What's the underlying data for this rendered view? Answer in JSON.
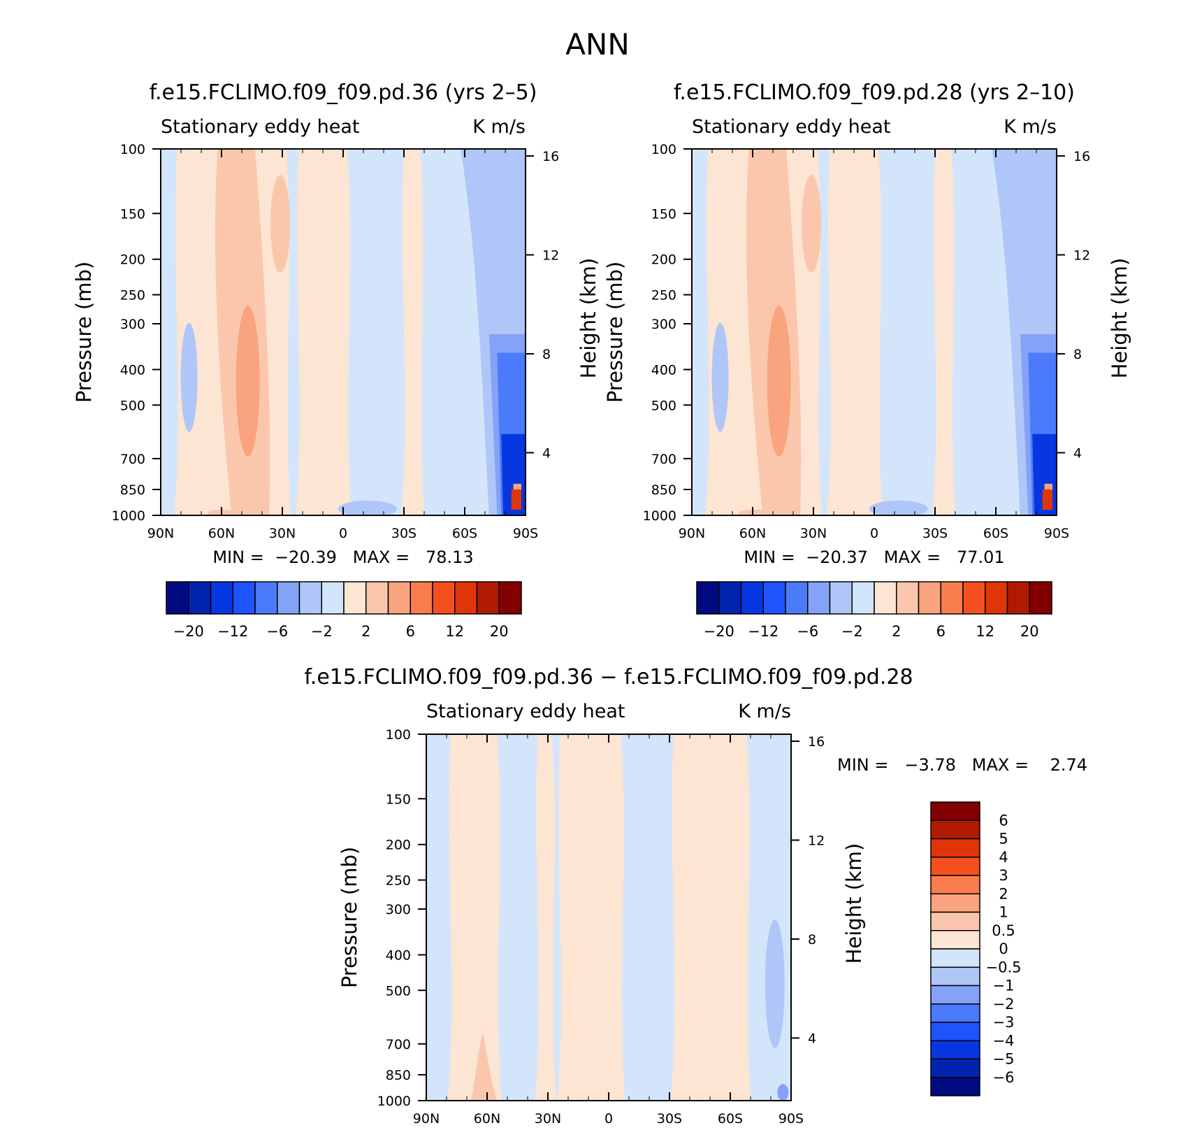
{
  "figure": {
    "title": "ANN"
  },
  "chart_data": [
    {
      "type": "heatmap",
      "id": "p1",
      "title": "f.e15.FCLIMO.f09_f09.pd.36 (yrs 2–5)",
      "field": "Stationary eddy heat",
      "units": "K m/s",
      "ylabel": "Pressure (mb)",
      "ylabel_right": "Height (km)",
      "x_ticks": [
        "90N",
        "60N",
        "30N",
        "0",
        "30S",
        "60S",
        "90S"
      ],
      "x_range": [
        90,
        -90
      ],
      "y_ticks": [
        100,
        150,
        200,
        250,
        300,
        400,
        500,
        700,
        850,
        1000
      ],
      "y_range": [
        100,
        1000
      ],
      "height_ticks": [
        16,
        12,
        8,
        4
      ],
      "min_label": "MIN =  −20.39   MAX =   78.13",
      "min": -20.39,
      "max": 78.13,
      "colorbar_labels": [
        "−20",
        "−12",
        "−6",
        "−2",
        "2",
        "6",
        "12",
        "20"
      ],
      "color_levels": [
        "#000b82",
        "#0024b0",
        "#0637e0",
        "#1f53fb",
        "#4b7bfb",
        "#85a3f6",
        "#b0c6f9",
        "#d3e5fa",
        "#fde5d3",
        "#fbc7ac",
        "#f9a47e",
        "#f97c4e",
        "#f4501f",
        "#e03607",
        "#b11a02",
        "#840000"
      ],
      "features": [
        {
          "name": "nh-midlat-positive-max",
          "lat": 45,
          "p_top": 300,
          "p_bottom": 750,
          "value": 6
        },
        {
          "name": "nh-subpolar-negative",
          "lat": 75,
          "p_top": 400,
          "p_bottom": 600,
          "value": -2
        },
        {
          "name": "sh-polar-negative-core",
          "lat": -80,
          "p_top": 300,
          "p_bottom": 950,
          "value": -12
        },
        {
          "name": "antarctic-surface-positive",
          "lat": -85,
          "p_top": 850,
          "p_bottom": 1000,
          "value": 20
        }
      ]
    },
    {
      "type": "heatmap",
      "id": "p2",
      "title": "f.e15.FCLIMO.f09_f09.pd.28 (yrs 2–10)",
      "field": "Stationary eddy heat",
      "units": "K m/s",
      "ylabel": "Pressure (mb)",
      "ylabel_right": "Height (km)",
      "x_ticks": [
        "90N",
        "60N",
        "30N",
        "0",
        "30S",
        "60S",
        "90S"
      ],
      "x_range": [
        90,
        -90
      ],
      "y_ticks": [
        100,
        150,
        200,
        250,
        300,
        400,
        500,
        700,
        850,
        1000
      ],
      "y_range": [
        100,
        1000
      ],
      "height_ticks": [
        16,
        12,
        8,
        4
      ],
      "min_label": "MIN =  −20.37   MAX =   77.01",
      "min": -20.37,
      "max": 77.01,
      "colorbar_labels": [
        "−20",
        "−12",
        "−6",
        "−2",
        "2",
        "6",
        "12",
        "20"
      ],
      "color_levels": [
        "#000b82",
        "#0024b0",
        "#0637e0",
        "#1f53fb",
        "#4b7bfb",
        "#85a3f6",
        "#b0c6f9",
        "#d3e5fa",
        "#fde5d3",
        "#fbc7ac",
        "#f9a47e",
        "#f97c4e",
        "#f4501f",
        "#e03607",
        "#b11a02",
        "#840000"
      ],
      "features": [
        {
          "name": "nh-midlat-positive-max",
          "lat": 45,
          "p_top": 300,
          "p_bottom": 750,
          "value": 6
        },
        {
          "name": "nh-subpolar-negative",
          "lat": 75,
          "p_top": 400,
          "p_bottom": 600,
          "value": -2
        },
        {
          "name": "sh-polar-negative-core",
          "lat": -80,
          "p_top": 300,
          "p_bottom": 950,
          "value": -12
        },
        {
          "name": "antarctic-surface-positive",
          "lat": -85,
          "p_top": 850,
          "p_bottom": 1000,
          "value": 20
        }
      ]
    },
    {
      "type": "heatmap",
      "id": "p3",
      "title": "f.e15.FCLIMO.f09_f09.pd.36 − f.e15.FCLIMO.f09_f09.pd.28",
      "field": "Stationary eddy heat",
      "units": "K m/s",
      "ylabel": "Pressure (mb)",
      "ylabel_right": "Height (km)",
      "x_ticks": [
        "90N",
        "60N",
        "30N",
        "0",
        "30S",
        "60S",
        "90S"
      ],
      "x_range": [
        90,
        -90
      ],
      "y_ticks": [
        100,
        150,
        200,
        250,
        300,
        400,
        500,
        700,
        850,
        1000
      ],
      "y_range": [
        100,
        1000
      ],
      "height_ticks": [
        16,
        12,
        8,
        4
      ],
      "min_label": "MIN =   −3.78   MAX =    2.74",
      "min": -3.78,
      "max": 2.74,
      "colorbar_labels": [
        "6",
        "5",
        "4",
        "3",
        "2",
        "1",
        "0.5",
        "0",
        "−0.5",
        "−1",
        "−2",
        "−3",
        "−4",
        "−5",
        "−6"
      ],
      "color_levels": [
        "#840000",
        "#b11a02",
        "#e03607",
        "#f4501f",
        "#f97c4e",
        "#f9a47e",
        "#fbc7ac",
        "#fde5d3",
        "#d3e5fa",
        "#b0c6f9",
        "#85a3f6",
        "#4b7bfb",
        "#1f53fb",
        "#0637e0",
        "#0024b0",
        "#000b82"
      ],
      "features": [
        {
          "name": "nh-near-surface-positive",
          "lat": 62,
          "p_top": 650,
          "p_bottom": 1000,
          "value": 1
        },
        {
          "name": "sh-polar-negative",
          "lat": -82,
          "p_top": 300,
          "p_bottom": 700,
          "value": -0.7
        }
      ]
    }
  ]
}
